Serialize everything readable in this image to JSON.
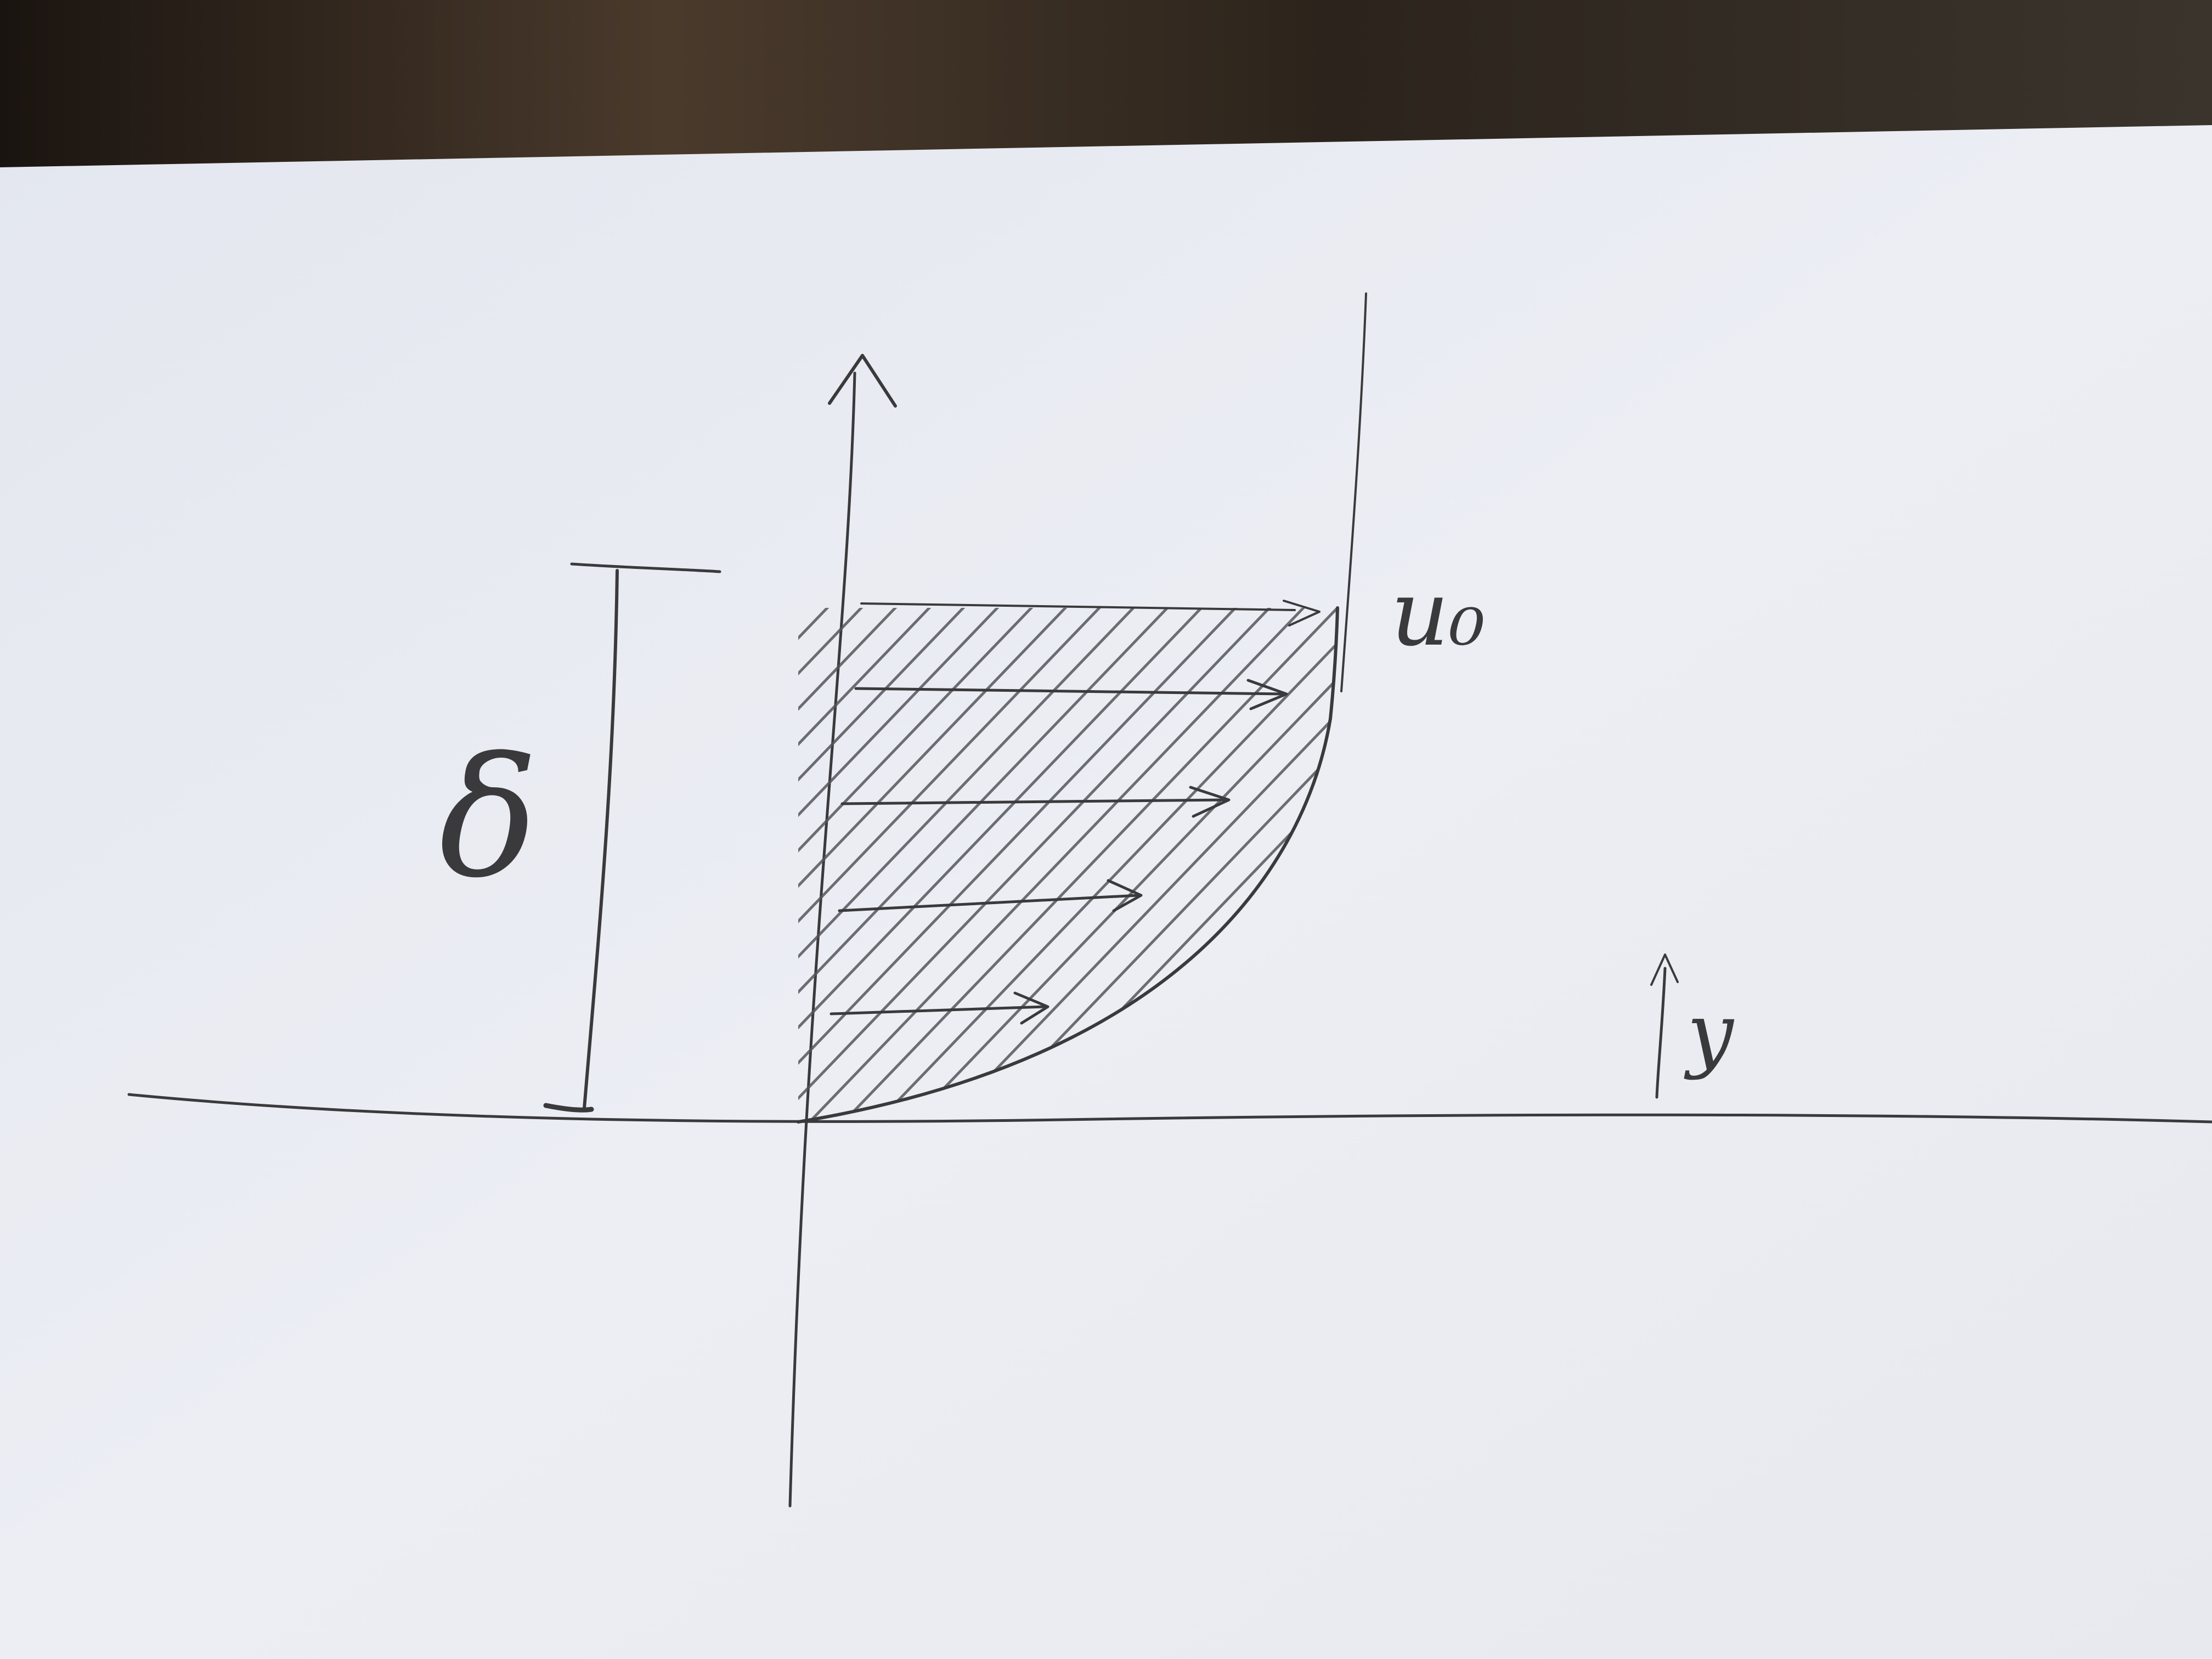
{
  "diagram": {
    "labels": {
      "thickness_symbol": "δ",
      "freestream_velocity": "u₀",
      "y_axis": "y"
    },
    "colors": {
      "paper": "#e9ebf2",
      "pencil": "#3a3a3c",
      "background_dark": "#2a2520"
    },
    "velocity_arrows_count": 5
  }
}
